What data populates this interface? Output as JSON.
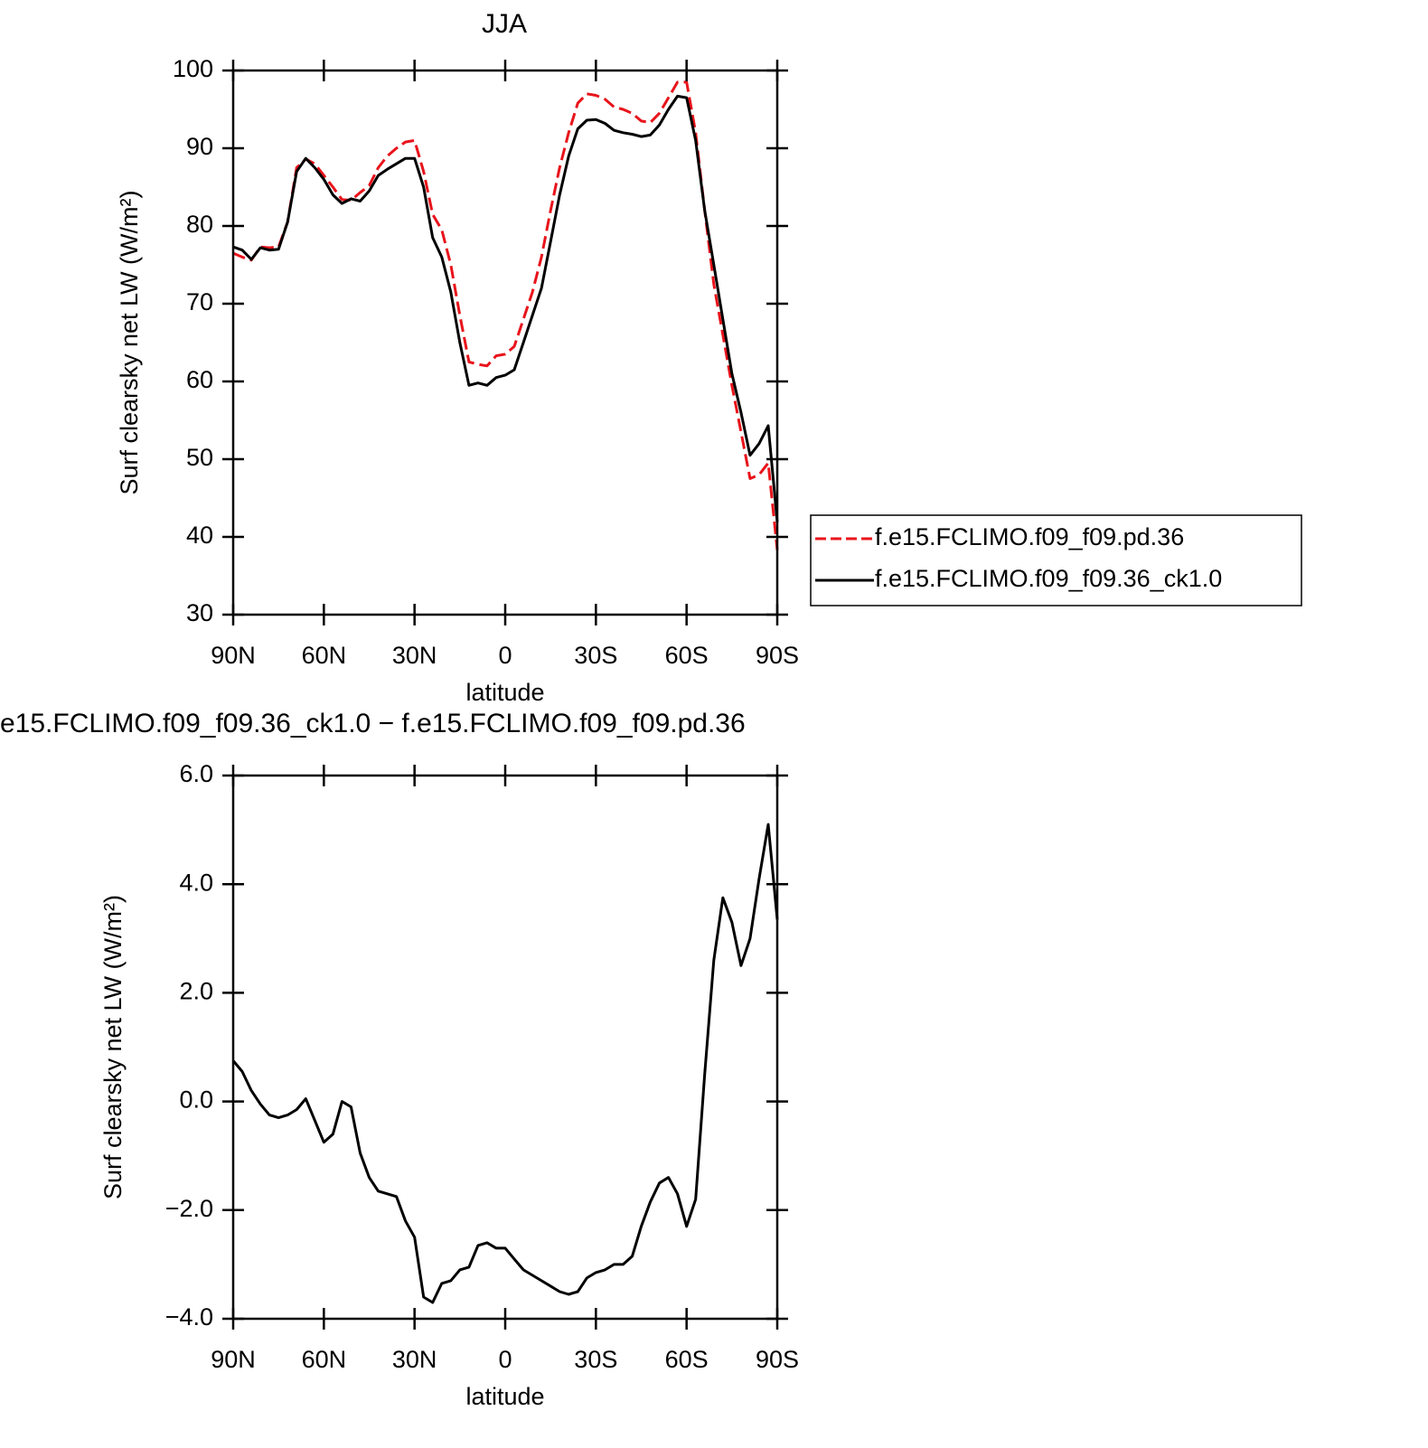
{
  "chart_data": [
    {
      "type": "line",
      "title": "JJA",
      "ylabel": "Surf clearsky net LW (W/m²)",
      "xlabel": "latitude",
      "x": [
        90,
        87,
        84,
        81,
        78,
        75,
        72,
        69,
        66,
        63,
        60,
        57,
        54,
        51,
        48,
        45,
        42,
        39,
        36,
        33,
        30,
        27,
        24,
        21,
        18,
        15,
        12,
        9,
        6,
        3,
        0,
        -3,
        -6,
        -9,
        -12,
        -15,
        -18,
        -21,
        -24,
        -27,
        -30,
        -33,
        -36,
        -39,
        -42,
        -45,
        -48,
        -51,
        -54,
        -57,
        -60,
        -63,
        -66,
        -69,
        -72,
        -75,
        -78,
        -81,
        -84,
        -87,
        -90
      ],
      "xlim": [
        90,
        -90
      ],
      "xticks": [
        {
          "value": 90,
          "label": "90N"
        },
        {
          "value": 60,
          "label": "60N"
        },
        {
          "value": 30,
          "label": "30N"
        },
        0,
        {
          "value": -30,
          "label": "30S"
        },
        {
          "value": -60,
          "label": "60S"
        },
        {
          "value": -90,
          "label": "90S"
        }
      ],
      "ylim": [
        30,
        100
      ],
      "yticks": [
        30,
        40,
        50,
        60,
        70,
        80,
        90,
        100
      ],
      "legend": "outside-right",
      "series": [
        {
          "name": "f.e15.FCLIMO.f09_f09.pd.36",
          "color": "#e8141b",
          "dash": true,
          "values": [
            76.5,
            76.0,
            75.6,
            77.3,
            77.2,
            77.3,
            80.5,
            87.5,
            88.6,
            88.0,
            86.5,
            85.0,
            83.4,
            83.3,
            84.3,
            85.2,
            87.5,
            89.0,
            90.0,
            90.8,
            91.0,
            87.0,
            81.5,
            79.5,
            75.0,
            68.5,
            62.5,
            62.2,
            62.0,
            63.3,
            63.5,
            64.5,
            68.0,
            71.5,
            76.0,
            82.0,
            87.5,
            92.0,
            95.8,
            97.0,
            96.8,
            96.3,
            95.3,
            95.0,
            94.5,
            93.5,
            93.3,
            94.5,
            96.5,
            98.5,
            98.5,
            92.0,
            82.0,
            72.5,
            66.0,
            59.5,
            53.5,
            47.5,
            48.0,
            49.5,
            38.3
          ]
        },
        {
          "name": "f.e15.FCLIMO.f09_f09.36_ck1.0",
          "color": "#000000",
          "dash": false,
          "values": [
            77.3,
            76.9,
            75.7,
            77.2,
            76.9,
            77.0,
            80.5,
            87.0,
            88.7,
            87.5,
            86.0,
            84.0,
            82.9,
            83.5,
            83.2,
            84.5,
            86.5,
            87.3,
            88.0,
            88.7,
            88.7,
            85.0,
            78.5,
            76.0,
            71.5,
            65.0,
            59.5,
            59.8,
            59.5,
            60.5,
            60.8,
            61.5,
            65.0,
            68.5,
            72.0,
            78.0,
            84.0,
            89.0,
            92.5,
            93.6,
            93.7,
            93.2,
            92.3,
            92.0,
            91.8,
            91.5,
            91.7,
            93.0,
            95.0,
            96.7,
            96.5,
            91.0,
            82.0,
            75.0,
            68.0,
            61.0,
            56.0,
            50.5,
            52.0,
            54.3,
            41.9
          ]
        }
      ]
    },
    {
      "type": "line",
      "title": "e15.FCLIMO.f09_f09.36_ck1.0 − f.e15.FCLIMO.f09_f09.pd.36",
      "ylabel": "Surf clearsky net LW (W/m²)",
      "xlabel": "latitude",
      "x": [
        90,
        87,
        84,
        81,
        78,
        75,
        72,
        69,
        66,
        63,
        60,
        57,
        54,
        51,
        48,
        45,
        42,
        39,
        36,
        33,
        30,
        27,
        24,
        21,
        18,
        15,
        12,
        9,
        6,
        3,
        0,
        -3,
        -6,
        -9,
        -12,
        -15,
        -18,
        -21,
        -24,
        -27,
        -30,
        -33,
        -36,
        -39,
        -42,
        -45,
        -48,
        -51,
        -54,
        -57,
        -60,
        -63,
        -66,
        -69,
        -72,
        -75,
        -78,
        -81,
        -84,
        -87,
        -90
      ],
      "xlim": [
        90,
        -90
      ],
      "xticks": [
        {
          "value": 90,
          "label": "90N"
        },
        {
          "value": 60,
          "label": "60N"
        },
        {
          "value": 30,
          "label": "30N"
        },
        0,
        {
          "value": -30,
          "label": "30S"
        },
        {
          "value": -60,
          "label": "60S"
        },
        {
          "value": -90,
          "label": "90S"
        }
      ],
      "ylim": [
        -4,
        6
      ],
      "yticks": [
        {
          "value": -4,
          "label": "−4.0"
        },
        {
          "value": -2,
          "label": "−2.0"
        },
        {
          "value": 0,
          "label": "0.0"
        },
        {
          "value": 2,
          "label": "2.0"
        },
        {
          "value": 4,
          "label": "4.0"
        },
        {
          "value": 6,
          "label": "6.0"
        }
      ],
      "series": [
        {
          "color": "#000000",
          "dash": false,
          "values": [
            0.75,
            0.55,
            0.2,
            -0.05,
            -0.25,
            -0.3,
            -0.25,
            -0.15,
            0.05,
            -0.35,
            -0.75,
            -0.6,
            0.0,
            -0.1,
            -0.95,
            -1.4,
            -1.65,
            -1.7,
            -1.75,
            -2.2,
            -2.5,
            -3.6,
            -3.7,
            -3.35,
            -3.3,
            -3.1,
            -3.05,
            -2.65,
            -2.6,
            -2.7,
            -2.7,
            -2.9,
            -3.1,
            -3.2,
            -3.3,
            -3.4,
            -3.5,
            -3.55,
            -3.5,
            -3.25,
            -3.15,
            -3.1,
            -3.0,
            -3.0,
            -2.85,
            -2.3,
            -1.85,
            -1.5,
            -1.4,
            -1.7,
            -2.3,
            -1.8,
            0.5,
            2.6,
            3.75,
            3.3,
            2.5,
            3.0,
            4.1,
            5.1,
            3.35
          ]
        }
      ]
    }
  ]
}
